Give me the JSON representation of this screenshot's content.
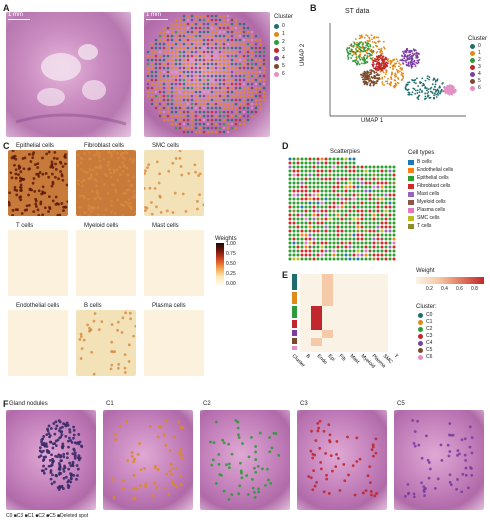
{
  "panels": {
    "A": {
      "label": "A",
      "scale1": "1 mm",
      "scale2": "1 mm",
      "legend_title": "Cluster"
    },
    "B": {
      "label": "B",
      "title": "ST data",
      "xlabel": "UMAP 1",
      "ylabel": "UMAP 2",
      "legend_title": "Cluster"
    },
    "C": {
      "label": "C",
      "cells": [
        "Epithelial cells",
        "Fibroblast cells",
        "SMC cells",
        "T cells",
        "Myeloid cells",
        "Mast cells",
        "Endothelial cells",
        "B cells",
        "Plasma cells"
      ],
      "colorbar_title": "Weights",
      "colorbar_ticks": [
        "1.00",
        "0.75",
        "0.50",
        "0.25",
        "0.00"
      ]
    },
    "D": {
      "label": "D",
      "title": "Scatterpies",
      "legend_title": "Cell types"
    },
    "E": {
      "label": "E",
      "legend_title": "Weight",
      "weight_ticks": [
        "0.2",
        "0.4",
        "0.6",
        "0.8"
      ],
      "cluster_title": "Cluster:",
      "xticks": [
        "Cluster",
        "B",
        "Endo",
        "Epi",
        "Fib",
        "Mast",
        "Myeloid",
        "Plasma",
        "SMC",
        "T"
      ]
    },
    "F": {
      "label": "F",
      "titles": [
        "Gland nodules",
        "C1",
        "C2",
        "C3",
        "C5"
      ],
      "legend": "C0 ■C3 ■C1 ■C2 ■C5 ■Deleted spot"
    }
  },
  "clusters": [
    {
      "name": "0",
      "color": "#1f6e6e"
    },
    {
      "name": "1",
      "color": "#e08a1c"
    },
    {
      "name": "2",
      "color": "#2f9a3a"
    },
    {
      "name": "3",
      "color": "#c0282d"
    },
    {
      "name": "4",
      "color": "#7b3fa0"
    },
    {
      "name": "5",
      "color": "#7b4a2a"
    },
    {
      "name": "6",
      "color": "#e58fc4"
    }
  ],
  "e_clusters": [
    "C0",
    "C1",
    "C2",
    "C3",
    "C4",
    "C5",
    "C6"
  ],
  "cell_types": [
    {
      "name": "B cells",
      "color": "#1f77b4"
    },
    {
      "name": "Endothelial cells",
      "color": "#ff7f0e"
    },
    {
      "name": "Epithelial cells",
      "color": "#2ca02c"
    },
    {
      "name": "Fibroblast cells",
      "color": "#d62728"
    },
    {
      "name": "Mast cells",
      "color": "#9467bd"
    },
    {
      "name": "Myeloid cells",
      "color": "#8c564b"
    },
    {
      "name": "Plasma cells",
      "color": "#e377c2"
    },
    {
      "name": "SMC cells",
      "color": "#bcbd22"
    },
    {
      "name": "T cells",
      "color": "#8c8c2a"
    }
  ]
}
